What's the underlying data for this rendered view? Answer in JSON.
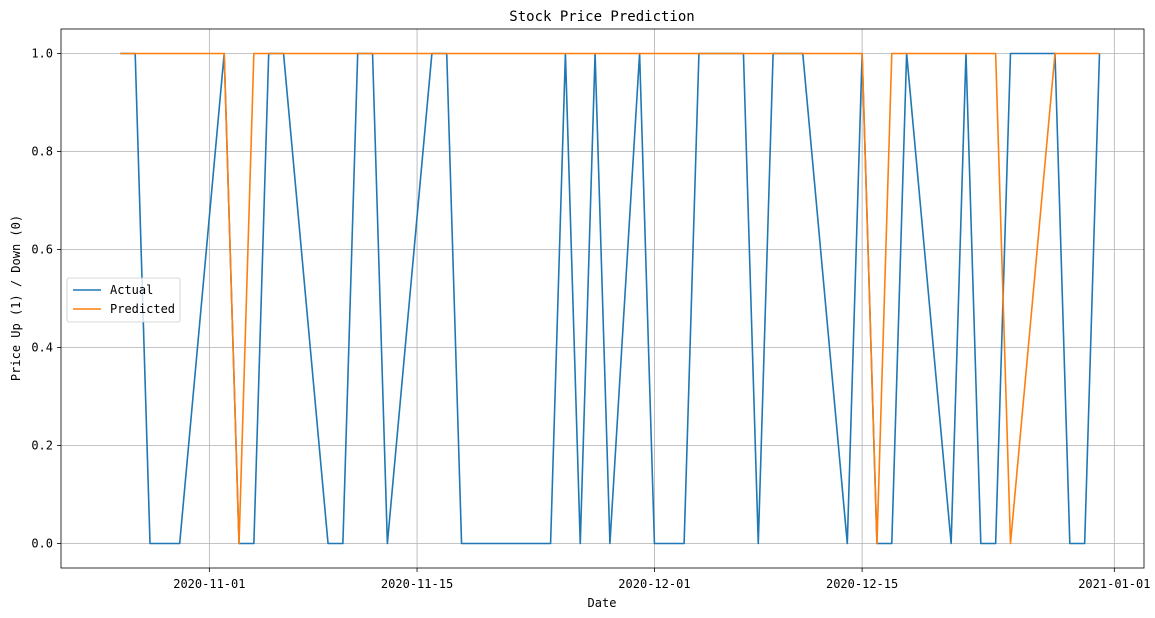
{
  "chart_data": {
    "type": "line",
    "title": "Stock Price Prediction",
    "xlabel": "Date",
    "ylabel": "Price Up (1) / Down (0)",
    "xlim": [
      "2020-10-22",
      "2021-01-03"
    ],
    "ylim": [
      -0.05,
      1.05
    ],
    "x_ticks": [
      "2020-11-01",
      "2020-11-15",
      "2020-12-01",
      "2020-12-15",
      "2021-01-01"
    ],
    "y_ticks": [
      "0.0",
      "0.2",
      "0.4",
      "0.6",
      "0.8",
      "1.0"
    ],
    "grid": true,
    "legend_position": "center-left",
    "series": [
      {
        "name": "Actual",
        "color": "#1f77b4",
        "points": [
          [
            "2020-10-26",
            1
          ],
          [
            "2020-10-27",
            1
          ],
          [
            "2020-10-28",
            0
          ],
          [
            "2020-10-29",
            0
          ],
          [
            "2020-10-30",
            0
          ],
          [
            "2020-11-02",
            1
          ],
          [
            "2020-11-03",
            0
          ],
          [
            "2020-11-04",
            0
          ],
          [
            "2020-11-05",
            1
          ],
          [
            "2020-11-06",
            1
          ],
          [
            "2020-11-09",
            0
          ],
          [
            "2020-11-10",
            0
          ],
          [
            "2020-11-11",
            1
          ],
          [
            "2020-11-12",
            1
          ],
          [
            "2020-11-13",
            0
          ],
          [
            "2020-11-16",
            1
          ],
          [
            "2020-11-17",
            1
          ],
          [
            "2020-11-18",
            0
          ],
          [
            "2020-11-19",
            0
          ],
          [
            "2020-11-20",
            0
          ],
          [
            "2020-11-23",
            0
          ],
          [
            "2020-11-24",
            0
          ],
          [
            "2020-11-25",
            1
          ],
          [
            "2020-11-26",
            0
          ],
          [
            "2020-11-27",
            1
          ],
          [
            "2020-11-28",
            0
          ],
          [
            "2020-11-30",
            1
          ],
          [
            "2020-12-01",
            0
          ],
          [
            "2020-12-02",
            0
          ],
          [
            "2020-12-03",
            0
          ],
          [
            "2020-12-04",
            1
          ],
          [
            "2020-12-07",
            1
          ],
          [
            "2020-12-08",
            0
          ],
          [
            "2020-12-09",
            1
          ],
          [
            "2020-12-10",
            1
          ],
          [
            "2020-12-11",
            1
          ],
          [
            "2020-12-14",
            0
          ],
          [
            "2020-12-15",
            1
          ],
          [
            "2020-12-16",
            0
          ],
          [
            "2020-12-17",
            0
          ],
          [
            "2020-12-18",
            1
          ],
          [
            "2020-12-21",
            0
          ],
          [
            "2020-12-22",
            1
          ],
          [
            "2020-12-23",
            0
          ],
          [
            "2020-12-24",
            0
          ],
          [
            "2020-12-25",
            1
          ],
          [
            "2020-12-28",
            1
          ],
          [
            "2020-12-29",
            0
          ],
          [
            "2020-12-30",
            0
          ],
          [
            "2020-12-31",
            1
          ]
        ]
      },
      {
        "name": "Predicted",
        "color": "#ff7f0e",
        "points": [
          [
            "2020-10-26",
            1
          ],
          [
            "2020-10-27",
            1
          ],
          [
            "2020-10-28",
            1
          ],
          [
            "2020-10-29",
            1
          ],
          [
            "2020-10-30",
            1
          ],
          [
            "2020-11-02",
            1
          ],
          [
            "2020-11-03",
            0
          ],
          [
            "2020-11-04",
            1
          ],
          [
            "2020-11-05",
            1
          ],
          [
            "2020-11-06",
            1
          ],
          [
            "2020-11-09",
            1
          ],
          [
            "2020-11-10",
            1
          ],
          [
            "2020-11-11",
            1
          ],
          [
            "2020-11-12",
            1
          ],
          [
            "2020-11-13",
            1
          ],
          [
            "2020-11-16",
            1
          ],
          [
            "2020-11-17",
            1
          ],
          [
            "2020-11-18",
            1
          ],
          [
            "2020-11-19",
            1
          ],
          [
            "2020-11-20",
            1
          ],
          [
            "2020-11-23",
            1
          ],
          [
            "2020-11-24",
            1
          ],
          [
            "2020-11-25",
            1
          ],
          [
            "2020-11-26",
            1
          ],
          [
            "2020-11-27",
            1
          ],
          [
            "2020-11-28",
            1
          ],
          [
            "2020-11-30",
            1
          ],
          [
            "2020-12-01",
            1
          ],
          [
            "2020-12-02",
            1
          ],
          [
            "2020-12-03",
            1
          ],
          [
            "2020-12-04",
            1
          ],
          [
            "2020-12-07",
            1
          ],
          [
            "2020-12-08",
            1
          ],
          [
            "2020-12-09",
            1
          ],
          [
            "2020-12-10",
            1
          ],
          [
            "2020-12-11",
            1
          ],
          [
            "2020-12-14",
            1
          ],
          [
            "2020-12-15",
            1
          ],
          [
            "2020-12-16",
            0
          ],
          [
            "2020-12-17",
            1
          ],
          [
            "2020-12-18",
            1
          ],
          [
            "2020-12-21",
            1
          ],
          [
            "2020-12-22",
            1
          ],
          [
            "2020-12-23",
            1
          ],
          [
            "2020-12-24",
            1
          ],
          [
            "2020-12-25",
            0
          ],
          [
            "2020-12-28",
            1
          ],
          [
            "2020-12-29",
            1
          ],
          [
            "2020-12-30",
            1
          ],
          [
            "2020-12-31",
            1
          ]
        ]
      }
    ]
  }
}
